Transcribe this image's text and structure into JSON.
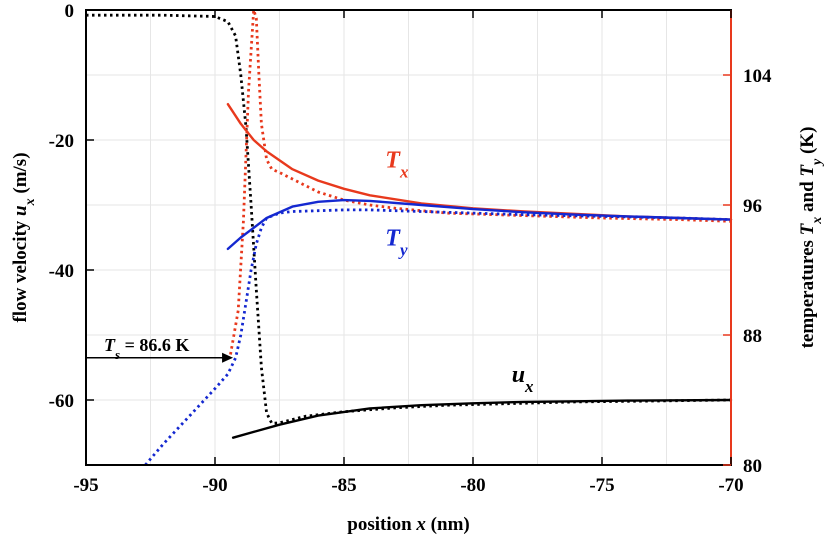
{
  "chart_data": {
    "type": "line",
    "title": "",
    "xlabel": {
      "prefix": "position ",
      "var": "x",
      "suffix": " (nm)"
    },
    "ylabel_left": {
      "prefix": "flow velocity ",
      "var": "u",
      "sub": "x",
      "suffix": " (m/s)"
    },
    "ylabel_right": {
      "prefix": "temperatures ",
      "var1": "T",
      "sub1": "x",
      "mid": " and ",
      "var2": "T",
      "sub2": "y",
      "suffix": " (K)"
    },
    "xlim": [
      -95,
      -70
    ],
    "ylim_left": [
      -70,
      0
    ],
    "ylim_right": [
      80,
      108
    ],
    "x_ticks": [
      -95,
      -90,
      -85,
      -80,
      -75,
      -70
    ],
    "y_left_ticks": [
      0,
      -20,
      -40,
      -60
    ],
    "y_right_ticks": [
      80,
      88,
      96,
      104
    ],
    "grid": true,
    "colors": {
      "ux": "#000000",
      "Tx": "#e8391d",
      "Ty": "#1428d0",
      "right_axis": "#e8391d"
    },
    "series": [
      {
        "name": "u_x",
        "axis": "left",
        "style": "solid",
        "color": "#000000",
        "x": [
          -89.3,
          -88.5,
          -87.5,
          -86,
          -84,
          -82,
          -80,
          -78,
          -76,
          -74,
          -72,
          -70
        ],
        "y": [
          -65.8,
          -64.9,
          -63.8,
          -62.4,
          -61.3,
          -60.8,
          -60.5,
          -60.3,
          -60.2,
          -60.1,
          -60.05,
          -60.0
        ]
      },
      {
        "name": "u_x (dotted)",
        "axis": "left",
        "style": "dotted",
        "color": "#000000",
        "x": [
          -95,
          -92,
          -90,
          -89.5,
          -89.2,
          -89.0,
          -88.8,
          -88.6,
          -88.4,
          -88.2,
          -88.0,
          -87.8,
          -87.5,
          -86.5,
          -85,
          -83,
          -81,
          -79,
          -76,
          -73,
          -70
        ],
        "y": [
          -0.8,
          -0.8,
          -1.0,
          -1.8,
          -4,
          -10,
          -18,
          -30,
          -43,
          -55,
          -62,
          -63.6,
          -63.5,
          -62.5,
          -61.8,
          -61.2,
          -60.8,
          -60.6,
          -60.3,
          -60.15,
          -60.0
        ]
      },
      {
        "name": "T_x",
        "axis": "right",
        "style": "solid",
        "color": "#e8391d",
        "x": [
          -89.5,
          -89,
          -88.5,
          -88,
          -87,
          -86,
          -85,
          -84,
          -82,
          -80,
          -78,
          -76,
          -74,
          -72,
          -70
        ],
        "y": [
          102.2,
          101.0,
          100.0,
          99.3,
          98.2,
          97.5,
          97.0,
          96.6,
          96.1,
          95.8,
          95.6,
          95.45,
          95.3,
          95.2,
          95.1
        ]
      },
      {
        "name": "T_x (dotted)",
        "axis": "right",
        "style": "dotted",
        "color": "#e8391d",
        "x": [
          -89.4,
          -89.1,
          -88.9,
          -88.7,
          -88.5,
          -88.4,
          -88.3,
          -88.2,
          -88.0,
          -87.8,
          -87.5,
          -87.0,
          -86.0,
          -85.0,
          -84.0,
          -83.0,
          -81.0,
          -78.0,
          -75.0,
          -72.0,
          -70.0
        ],
        "y": [
          86.8,
          89.5,
          95,
          103,
          108.2,
          107.5,
          104,
          101,
          98.8,
          98.2,
          98.0,
          97.6,
          96.8,
          96.3,
          96.0,
          95.8,
          95.5,
          95.35,
          95.2,
          95.1,
          95.0
        ]
      },
      {
        "name": "T_y",
        "axis": "right",
        "style": "solid",
        "color": "#1428d0",
        "x": [
          -89.5,
          -89,
          -88.5,
          -88,
          -87,
          -86,
          -85,
          -84,
          -82,
          -80,
          -78,
          -76,
          -74,
          -72,
          -70
        ],
        "y": [
          93.3,
          94.0,
          94.6,
          95.2,
          95.9,
          96.2,
          96.3,
          96.25,
          96.0,
          95.75,
          95.55,
          95.4,
          95.3,
          95.2,
          95.1
        ]
      },
      {
        "name": "T_y (dotted)",
        "axis": "right",
        "style": "dotted",
        "color": "#1428d0",
        "x": [
          -92.7,
          -92,
          -91,
          -90,
          -89.5,
          -89.2,
          -89.0,
          -88.8,
          -88.6,
          -88.4,
          -88.2,
          -88.0,
          -87.5,
          -87,
          -86,
          -85,
          -84,
          -82,
          -80,
          -78,
          -75,
          -72,
          -70
        ],
        "y": [
          80.0,
          81.3,
          83.0,
          84.7,
          85.6,
          86.6,
          88.0,
          90.0,
          92.0,
          93.6,
          94.6,
          95.2,
          95.5,
          95.6,
          95.65,
          95.7,
          95.7,
          95.6,
          95.5,
          95.4,
          95.3,
          95.2,
          95.1
        ]
      }
    ],
    "annotations": [
      {
        "id": "Ts",
        "var": "T",
        "sub": "s",
        "text": " = 86.6 K",
        "arrow_from_x": -95,
        "arrow_to_x": -89.3,
        "y_right": 86.6
      },
      {
        "id": "label_Tx",
        "var": "T",
        "sub": "x",
        "color": "#e8391d",
        "x": -83.4,
        "y_right": 98.3
      },
      {
        "id": "label_Ty",
        "var": "T",
        "sub": "y",
        "color": "#1428d0",
        "x": -83.4,
        "y_right": 93.5
      },
      {
        "id": "label_ux",
        "var": "u",
        "sub": "x",
        "color": "#000000",
        "x": -78.5,
        "y_left": -57.2
      }
    ]
  }
}
